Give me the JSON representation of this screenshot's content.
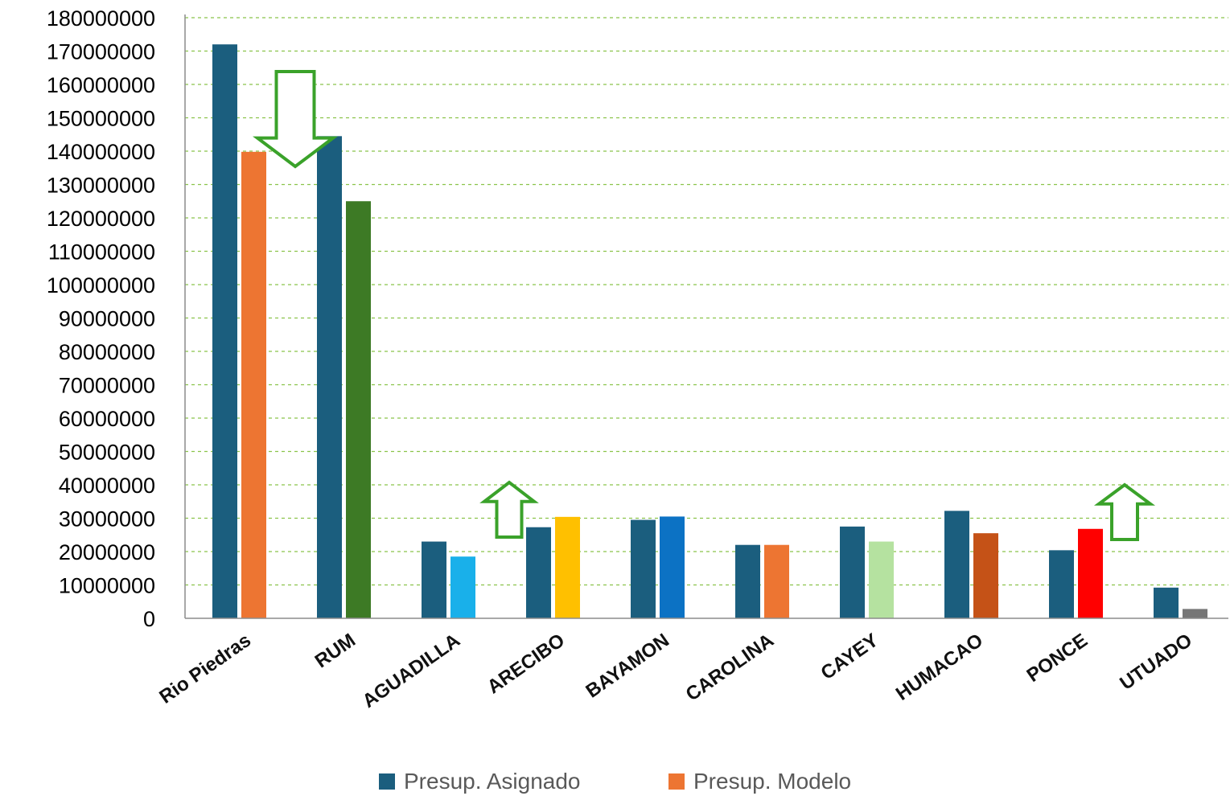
{
  "chart_data": {
    "type": "bar",
    "categories": [
      "Rio Piedras",
      "RUM",
      "AGUADILLA",
      "ARECIBO",
      "BAYAMON",
      "CAROLINA",
      "CAYEY",
      "HUMACAO",
      "PONCE",
      "UTUADO"
    ],
    "series": [
      {
        "name": "Presup. Asignado",
        "values": [
          172000000,
          144500000,
          23000000,
          27300000,
          29500000,
          22000000,
          27500000,
          32200000,
          20400000,
          9200000
        ],
        "colors": [
          "#1b5e7e",
          "#1b5e7e",
          "#1b5e7e",
          "#1b5e7e",
          "#1b5e7e",
          "#1b5e7e",
          "#1b5e7e",
          "#1b5e7e",
          "#1b5e7e",
          "#1b5e7e"
        ]
      },
      {
        "name": "Presup. Modelo",
        "values": [
          139800000,
          125000000,
          18500000,
          30400000,
          30500000,
          22000000,
          23000000,
          25500000,
          26800000,
          2800000
        ],
        "colors": [
          "#ed7532",
          "#3d7a25",
          "#19b0ea",
          "#ffc000",
          "#0c72c4",
          "#ed7532",
          "#b5e2a0",
          "#c55217",
          "#ff0000",
          "#767676"
        ]
      }
    ],
    "ylim": [
      0,
      180000000
    ],
    "yticks": [
      "0",
      "10000000",
      "20000000",
      "30000000",
      "40000000",
      "50000000",
      "60000000",
      "70000000",
      "80000000",
      "90000000",
      "100000000",
      "110000000",
      "120000000",
      "130000000",
      "140000000",
      "150000000",
      "160000000",
      "170000000",
      "180000000"
    ],
    "title": "",
    "xlabel": "",
    "ylabel": "",
    "grid": true,
    "legend": {
      "position": "bottom",
      "entries": [
        {
          "label": "Presup. Asignado",
          "color": "#1b5e7e"
        },
        {
          "label": "Presup. Modelo",
          "color": "#ed7532"
        }
      ]
    },
    "annotations": [
      {
        "shape": "down-arrow",
        "category": "RUM",
        "color": "#3aa22a"
      },
      {
        "shape": "up-arrow",
        "category": "ARECIBO",
        "color": "#3aa22a"
      },
      {
        "shape": "up-arrow",
        "category": "PONCE",
        "color": "#3aa22a"
      }
    ]
  }
}
